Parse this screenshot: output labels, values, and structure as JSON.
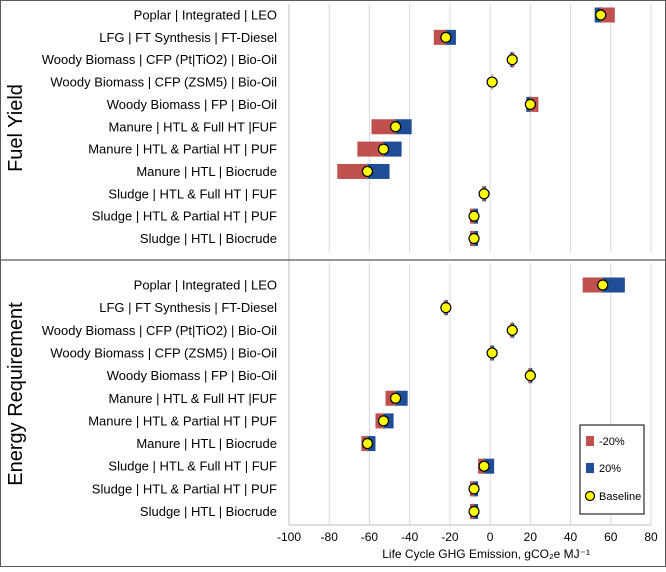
{
  "chart_data": {
    "type": "tornado",
    "xlabel": "Life Cycle GHG Emission, gCO₂e MJ⁻¹",
    "xlim": [
      -100,
      80
    ],
    "xticks": [
      -100,
      -80,
      -60,
      -40,
      -20,
      0,
      20,
      40,
      60,
      80
    ],
    "legend": {
      "position": "bottom-right of lower panel",
      "entries": [
        {
          "label": "-20%",
          "color": "#c0504d"
        },
        {
          "label": "20%",
          "color": "#1f4e96"
        },
        {
          "label": "Baseline",
          "color": "#ffff00"
        }
      ]
    },
    "panels": [
      {
        "title": "Fuel Yield",
        "rows": [
          {
            "label": "Poplar | Integrated | LEO",
            "baseline": 55,
            "minus20": 62,
            "plus20": 52
          },
          {
            "label": "LFG | FT Synthesis | FT-Diesel",
            "baseline": -22,
            "minus20": -28,
            "plus20": -17
          },
          {
            "label": "Woody Biomass | CFP (Pt|TiO2) | Bio-Oil",
            "baseline": 11,
            "minus20": 12,
            "plus20": 10
          },
          {
            "label": "Woody Biomass | CFP (ZSM5) | Bio-Oil",
            "baseline": 1,
            "minus20": 1,
            "plus20": 1
          },
          {
            "label": "Woody Biomass | FP | Bio-Oil",
            "baseline": 20,
            "minus20": 24,
            "plus20": 18
          },
          {
            "label": "Manure | HTL & Full HT |FUF",
            "baseline": -47,
            "minus20": -59,
            "plus20": -39
          },
          {
            "label": "Manure | HTL & Partial HT | PUF",
            "baseline": -53,
            "minus20": -66,
            "plus20": -44
          },
          {
            "label": "Manure | HTL | Biocrude",
            "baseline": -61,
            "minus20": -76,
            "plus20": -50
          },
          {
            "label": "Sludge | HTL & Full HT | FUF",
            "baseline": -3,
            "minus20": -4,
            "plus20": -2
          },
          {
            "label": "Sludge | HTL & Partial HT | PUF",
            "baseline": -8,
            "minus20": -10,
            "plus20": -6
          },
          {
            "label": "Sludge | HTL | Biocrude",
            "baseline": -8,
            "minus20": -10,
            "plus20": -6
          }
        ]
      },
      {
        "title": "Energy Requirement",
        "rows": [
          {
            "label": "Poplar | Integrated | LEO",
            "baseline": 56,
            "minus20": 46,
            "plus20": 67
          },
          {
            "label": "LFG | FT Synthesis | FT-Diesel",
            "baseline": -22,
            "minus20": -23,
            "plus20": -21
          },
          {
            "label": "Woody Biomass | CFP (Pt|TiO2) | Bio-Oil",
            "baseline": 11,
            "minus20": 10,
            "plus20": 12
          },
          {
            "label": "Woody Biomass | CFP (ZSM5) | Bio-Oil",
            "baseline": 1,
            "minus20": 0,
            "plus20": 2
          },
          {
            "label": "Woody Biomass | FP | Bio-Oil",
            "baseline": 20,
            "minus20": 19,
            "plus20": 21
          },
          {
            "label": "Manure | HTL & Full HT |FUF",
            "baseline": -47,
            "minus20": -52,
            "plus20": -41
          },
          {
            "label": "Manure | HTL & Partial HT | PUF",
            "baseline": -53,
            "minus20": -57,
            "plus20": -48
          },
          {
            "label": "Manure | HTL | Biocrude",
            "baseline": -61,
            "minus20": -64,
            "plus20": -57
          },
          {
            "label": "Sludge | HTL & Full HT | FUF",
            "baseline": -3,
            "minus20": -6,
            "plus20": 2
          },
          {
            "label": "Sludge | HTL & Partial HT | PUF",
            "baseline": -8,
            "minus20": -10,
            "plus20": -6
          },
          {
            "label": "Sludge | HTL | Biocrude",
            "baseline": -8,
            "minus20": -10,
            "plus20": -6
          }
        ]
      }
    ]
  }
}
